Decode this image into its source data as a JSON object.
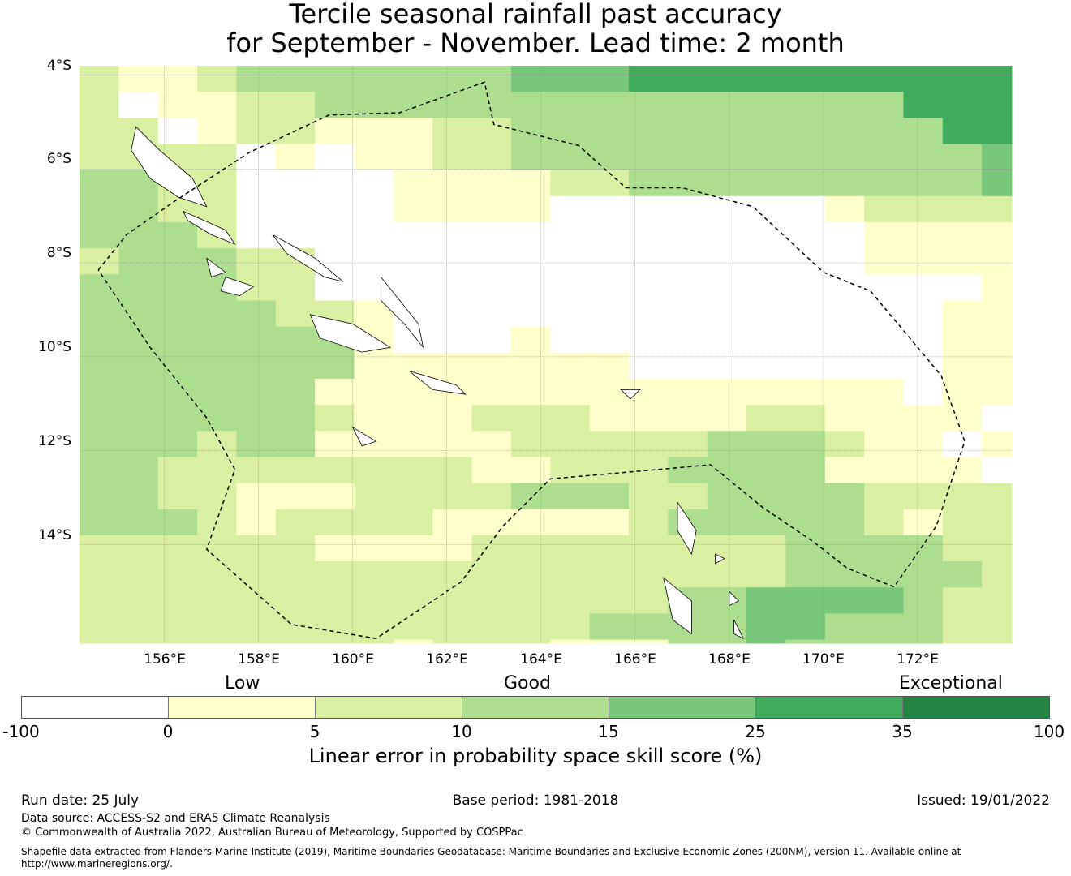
{
  "title_line1": "Tercile seasonal rainfall past accuracy",
  "title_line2": "for September - November. Lead time: 2 month",
  "latitude_labels": [
    "4°S",
    "6°S",
    "8°S",
    "10°S",
    "12°S",
    "14°S"
  ],
  "longitude_labels": [
    "156°E",
    "158°E",
    "160°E",
    "162°E",
    "164°E",
    "166°E",
    "168°E",
    "170°E",
    "172°E"
  ],
  "legend": {
    "categories": [
      "Low",
      "Good",
      "Exceptional"
    ],
    "ticks": [
      "-100",
      "0",
      "5",
      "10",
      "15",
      "25",
      "35",
      "100"
    ],
    "colors": [
      "#ffffff",
      "#ffffcc",
      "#d9f0a3",
      "#addd8e",
      "#78c679",
      "#41ab5d",
      "#238443"
    ],
    "label": "Linear error in probability space skill score (%)"
  },
  "footer": {
    "run_date": "Run date: 25 July",
    "base_period": "Base period: 1981-2018",
    "issued": "Issued: 19/01/2022",
    "data_source": "Data source: ACCESS-S2 and ERA5 Climate Reanalysis",
    "copyright": "© Commonwealth of Australia 2022, Australian Bureau of Meteorology, Supported by COSPPac",
    "shapefile_line1": "Shapefile data extracted from Flanders Marine Institute (2019), Maritime Boundaries Geodatabase: Maritime Boundaries and Exclusive Economic Zones (200NM), version 11. Available online at",
    "shapefile_line2": "http://www.marineregions.org/."
  },
  "grid": {
    "lon_start": 154.2,
    "lon_step": 0.8333,
    "lat_start": -3.8,
    "lat_step": 0.5556,
    "rows": [
      "2112333333344455555555554445555",
      "2011223333333333333335555554444",
      "2201221112233333333333555554444",
      "2222010112233333333333344443444",
      "3322000011112233333333344434444",
      "3322000011110000000122222233444",
      "3332000000000000000011112333343",
      "2333220000000000000011112222233",
      "3333220000000000000000011112223",
      "3333322100000000000000111111223",
      "3333333100010000000000110001122",
      "3333333111111100000000111111111",
      "3333331111111111111110111111111",
      "3333332111222111122111100111101",
      "3332331111122222333211010111100",
      "3322222222112223333111101111111",
      "3322111222233322333322221111100",
      "3332122221111123333321222111100",
      "2222221111222222223333222221111",
      "2222222222222222223333322221111",
      "2222222222222223344443223211111",
      "2222222222222333344333221111111",
      "2222222212221113343333222211211",
      "2111222111111112223322222222111",
      "1111212222222222223223222222111"
    ]
  },
  "eez_boundary_lonlat": [
    [
      154.6,
      -8.15
    ],
    [
      155.2,
      -7.4
    ],
    [
      156.2,
      -6.7
    ],
    [
      157.8,
      -5.65
    ],
    [
      159.5,
      -4.85
    ],
    [
      161.0,
      -4.8
    ],
    [
      162.8,
      -4.15
    ],
    [
      163.0,
      -5.05
    ],
    [
      164.8,
      -5.5
    ],
    [
      165.8,
      -6.4
    ],
    [
      167.0,
      -6.4
    ],
    [
      168.5,
      -6.8
    ],
    [
      170.0,
      -8.2
    ],
    [
      171.0,
      -8.6
    ],
    [
      172.5,
      -10.4
    ],
    [
      173.0,
      -11.8
    ],
    [
      172.4,
      -13.6
    ],
    [
      171.5,
      -14.9
    ],
    [
      170.5,
      -14.5
    ],
    [
      169.8,
      -13.95
    ],
    [
      168.7,
      -13.2
    ],
    [
      167.6,
      -12.3
    ],
    [
      166.5,
      -12.4
    ],
    [
      164.2,
      -12.6
    ],
    [
      163.2,
      -13.6
    ],
    [
      162.3,
      -14.8
    ],
    [
      160.5,
      -16.0
    ],
    [
      158.7,
      -15.7
    ],
    [
      156.9,
      -14.1
    ],
    [
      157.5,
      -12.4
    ],
    [
      156.9,
      -11.3
    ],
    [
      155.7,
      -9.8
    ],
    [
      154.6,
      -8.15
    ]
  ],
  "coastlines_lonlat": [
    [
      [
        155.4,
        -5.1
      ],
      [
        155.9,
        -5.6
      ],
      [
        156.6,
        -6.2
      ],
      [
        156.9,
        -6.8
      ],
      [
        156.3,
        -6.6
      ],
      [
        155.7,
        -6.2
      ],
      [
        155.3,
        -5.6
      ],
      [
        155.4,
        -5.1
      ]
    ],
    [
      [
        156.4,
        -6.9
      ],
      [
        157.3,
        -7.3
      ],
      [
        157.5,
        -7.6
      ],
      [
        157.0,
        -7.4
      ],
      [
        156.5,
        -7.1
      ],
      [
        156.4,
        -6.9
      ]
    ],
    [
      [
        158.3,
        -7.4
      ],
      [
        159.2,
        -7.9
      ],
      [
        159.8,
        -8.4
      ],
      [
        159.4,
        -8.3
      ],
      [
        158.6,
        -7.8
      ],
      [
        158.3,
        -7.4
      ]
    ],
    [
      [
        156.9,
        -7.9
      ],
      [
        157.3,
        -8.2
      ],
      [
        157.0,
        -8.3
      ],
      [
        156.9,
        -7.9
      ]
    ],
    [
      [
        157.3,
        -8.3
      ],
      [
        157.9,
        -8.5
      ],
      [
        157.6,
        -8.7
      ],
      [
        157.2,
        -8.6
      ],
      [
        157.3,
        -8.3
      ]
    ],
    [
      [
        159.1,
        -9.1
      ],
      [
        160.0,
        -9.3
      ],
      [
        160.8,
        -9.8
      ],
      [
        160.2,
        -9.9
      ],
      [
        159.3,
        -9.6
      ],
      [
        159.1,
        -9.1
      ]
    ],
    [
      [
        160.6,
        -8.3
      ],
      [
        161.0,
        -8.8
      ],
      [
        161.4,
        -9.3
      ],
      [
        161.5,
        -9.8
      ],
      [
        161.1,
        -9.3
      ],
      [
        160.6,
        -8.8
      ],
      [
        160.6,
        -8.3
      ]
    ],
    [
      [
        161.2,
        -10.3
      ],
      [
        162.2,
        -10.6
      ],
      [
        162.4,
        -10.8
      ],
      [
        161.7,
        -10.7
      ],
      [
        161.2,
        -10.3
      ]
    ],
    [
      [
        166.9,
        -13.1
      ],
      [
        167.3,
        -13.7
      ],
      [
        167.2,
        -14.2
      ],
      [
        166.9,
        -13.7
      ],
      [
        166.9,
        -13.1
      ]
    ],
    [
      [
        166.6,
        -14.7
      ],
      [
        167.2,
        -15.2
      ],
      [
        167.2,
        -15.9
      ],
      [
        166.8,
        -15.6
      ],
      [
        166.6,
        -14.7
      ]
    ],
    [
      [
        168.1,
        -15.6
      ],
      [
        168.3,
        -16.0
      ],
      [
        168.1,
        -15.9
      ],
      [
        168.1,
        -15.6
      ]
    ],
    [
      [
        165.7,
        -10.7
      ],
      [
        166.1,
        -10.7
      ],
      [
        165.9,
        -10.9
      ],
      [
        165.7,
        -10.7
      ]
    ],
    [
      [
        160.0,
        -11.5
      ],
      [
        160.5,
        -11.8
      ],
      [
        160.2,
        -11.9
      ],
      [
        160.0,
        -11.5
      ]
    ],
    [
      [
        167.7,
        -14.2
      ],
      [
        167.9,
        -14.3
      ],
      [
        167.7,
        -14.4
      ],
      [
        167.7,
        -14.2
      ]
    ],
    [
      [
        168.0,
        -15.0
      ],
      [
        168.2,
        -15.2
      ],
      [
        168.0,
        -15.3
      ],
      [
        168.0,
        -15.0
      ]
    ]
  ]
}
